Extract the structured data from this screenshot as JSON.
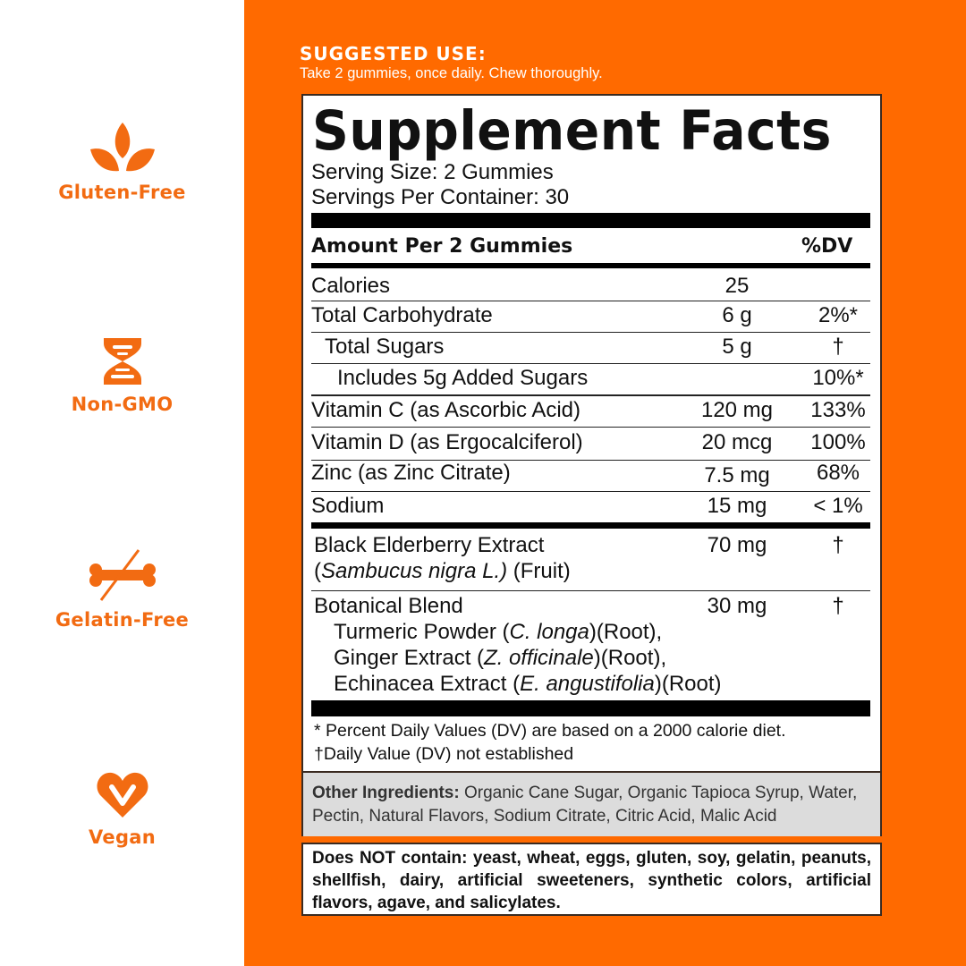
{
  "badges": [
    {
      "label": "Gluten-Free",
      "icon": "leaf-sprout-icon"
    },
    {
      "label": "Non-GMO",
      "icon": "dna-icon"
    },
    {
      "label": "Gelatin-Free",
      "icon": "crossed-bone-icon"
    },
    {
      "label": "Vegan",
      "icon": "heart-v-icon"
    }
  ],
  "colors": {
    "background": "#ff6a00",
    "icon": "#f26b12"
  },
  "suggested_use": {
    "title": "SUGGESTED USE:",
    "text": "Take 2 gummies, once daily. Chew thoroughly."
  },
  "facts": {
    "title": "Supplement Facts",
    "serving_size": "Serving Size: 2 Gummies",
    "servings_per_container": "Servings Per Container: 30",
    "header_amount": "Amount Per 2 Gummies",
    "header_dv": "%DV",
    "rows": [
      {
        "name": "Calories",
        "amount": "25",
        "dv": ""
      },
      {
        "name": "Total Carbohydrate",
        "amount": "6 g",
        "dv": "2%*"
      },
      {
        "name": "Total Sugars",
        "amount": "5 g",
        "dv": "†"
      },
      {
        "name": "Includes 5g Added Sugars",
        "amount": "",
        "dv": "10%*"
      },
      {
        "name": "Vitamin C (as Ascorbic Acid)",
        "amount": "120 mg",
        "dv": "133%"
      },
      {
        "name": "Vitamin D (as Ergocalciferol)",
        "amount": "20 mcg",
        "dv": "100%"
      },
      {
        "name": "Zinc (as Zinc Citrate)",
        "amount": "7.5 mg",
        "dv": "68%"
      },
      {
        "name": "Sodium",
        "amount": "15 mg",
        "dv": "< 1%"
      }
    ],
    "elderberry": {
      "name": "Black Elderberry Extract",
      "open": "(",
      "latin": "Sambucus nigra L.)",
      "part": " (Fruit)",
      "amount": "70 mg",
      "dv": "†"
    },
    "botanical": {
      "name": "Botanical Blend",
      "amount": "30 mg",
      "dv": "†",
      "items": [
        {
          "pre": "Turmeric Powder (",
          "latin": "C. longa",
          "post": ")(Root),"
        },
        {
          "pre": "Ginger Extract (",
          "latin": "Z. officinale",
          "post": ")(Root),"
        },
        {
          "pre": "Echinacea Extract (",
          "latin": "E. angustifolia",
          "post": ")(Root)"
        }
      ]
    },
    "footnote1": "* Percent Daily Values (DV) are based on a 2000 calorie diet.",
    "footnote2": "†Daily Value (DV) not established"
  },
  "other_ingredients": {
    "label": "Other Ingredients:",
    "text": " Organic Cane Sugar, Organic Tapioca Syrup, Water, Pectin, Natural Flavors, Sodium Citrate, Citric Acid, Malic Acid"
  },
  "does_not_contain": "Does NOT contain: yeast, wheat, eggs, gluten, soy, gelatin, peanuts, shellfish, dairy, artificial sweeteners, synthetic colors, artificial flavors, agave, and salicylates."
}
